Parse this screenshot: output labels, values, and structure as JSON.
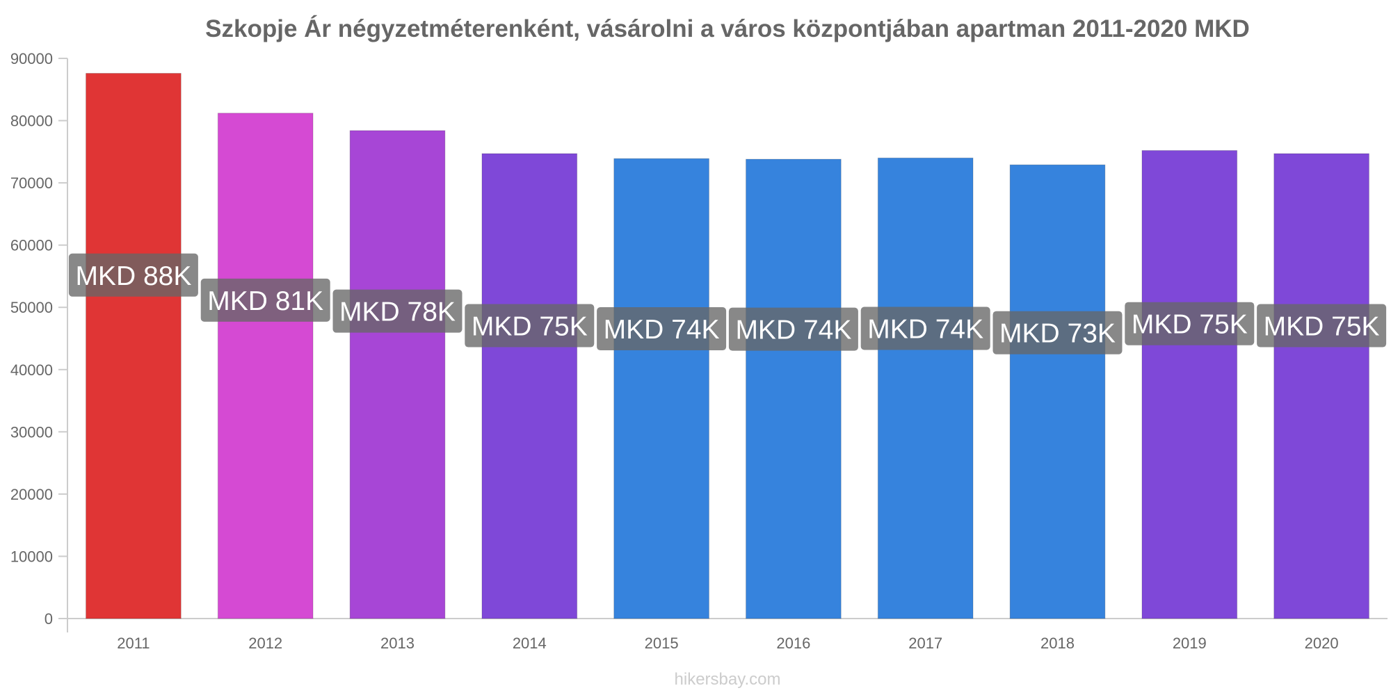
{
  "source_label": "hikersbay.com",
  "chart_data": {
    "type": "bar",
    "title": "Szkopje Ár négyzetméterenként, vásárolni a város központjában apartman 2011-2020 MKD",
    "xlabel": "",
    "ylabel": "",
    "ylim": [
      0,
      90000
    ],
    "yticks": [
      "0",
      "10000",
      "20000",
      "30000",
      "40000",
      "50000",
      "60000",
      "70000",
      "80000",
      "90000"
    ],
    "grid": false,
    "categories": [
      "2011",
      "2012",
      "2013",
      "2014",
      "2015",
      "2016",
      "2017",
      "2018",
      "2019",
      "2020"
    ],
    "values": [
      87600,
      81200,
      78400,
      74700,
      73900,
      73800,
      74000,
      72900,
      75200,
      74700
    ],
    "data_labels": [
      "MKD 88K",
      "MKD 81K",
      "MKD 78K",
      "MKD 75K",
      "MKD 74K",
      "MKD 74K",
      "MKD 74K",
      "MKD 73K",
      "MKD 75K",
      "MKD 75K"
    ],
    "colors": [
      "#e03535",
      "#d54ad3",
      "#a746d6",
      "#7f48d8",
      "#3683dd",
      "#3683dd",
      "#3683dd",
      "#3683dd",
      "#7f48d8",
      "#7f48d8"
    ],
    "label_box_color": "#666666"
  }
}
